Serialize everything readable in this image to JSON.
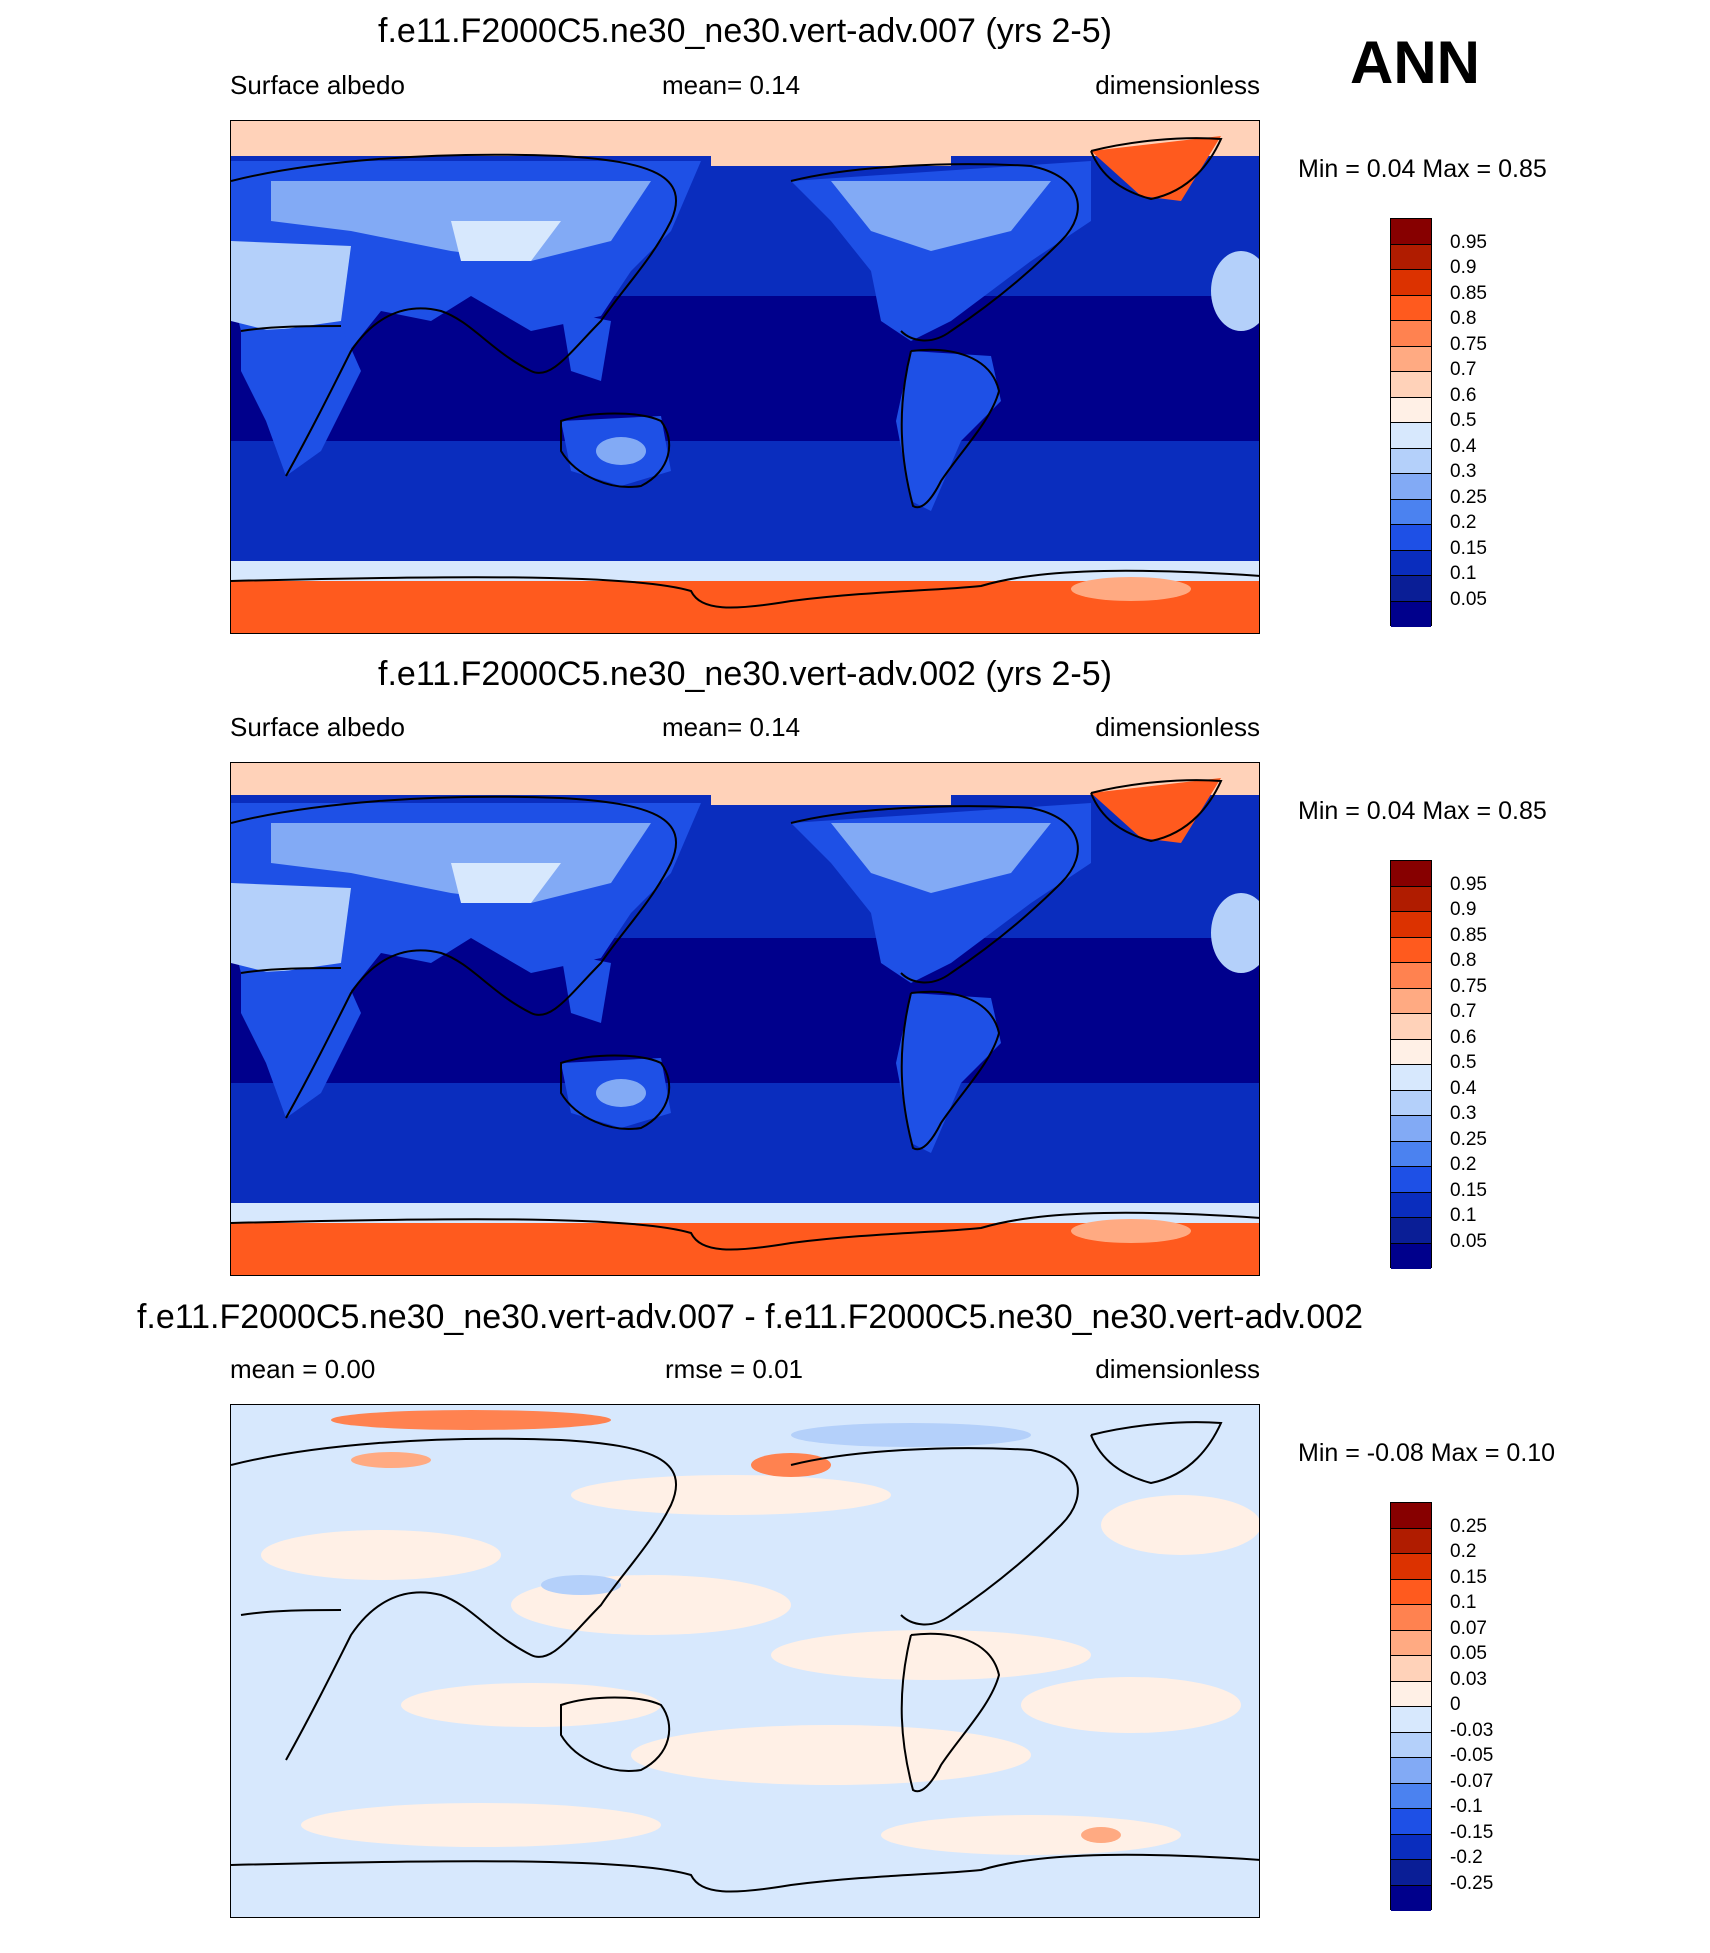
{
  "header": {
    "season": "ANN"
  },
  "panels": [
    {
      "title": "f.e11.F2000C5.ne30_ne30.vert-adv.007 (yrs 2-5)",
      "left_label": "Surface albedo",
      "center_label": "mean=   0.14",
      "right_label": "dimensionless",
      "minmax": "Min =   0.04 Max =   0.85",
      "colorbar_labels": [
        "0.95",
        "0.9",
        "0.85",
        "0.8",
        "0.75",
        "0.7",
        "0.6",
        "0.5",
        "0.4",
        "0.3",
        "0.25",
        "0.2",
        "0.15",
        "0.1",
        "0.05"
      ],
      "colorbar_colors": [
        "#870000",
        "#b01c00",
        "#dc3200",
        "#ff5a1e",
        "#ff8250",
        "#ffaa82",
        "#ffd2b9",
        "#fff0e6",
        "#d7e8fd",
        "#b4d0fa",
        "#82aaf5",
        "#4b82f0",
        "#1e50e6",
        "#0a2dbe",
        "#0a1e96",
        "#00008c"
      ],
      "min": 0.04,
      "max": 0.85,
      "mean": 0.14
    },
    {
      "title": "f.e11.F2000C5.ne30_ne30.vert-adv.002 (yrs 2-5)",
      "left_label": "Surface albedo",
      "center_label": "mean=   0.14",
      "right_label": "dimensionless",
      "minmax": "Min =   0.04 Max =   0.85",
      "colorbar_labels": [
        "0.95",
        "0.9",
        "0.85",
        "0.8",
        "0.75",
        "0.7",
        "0.6",
        "0.5",
        "0.4",
        "0.3",
        "0.25",
        "0.2",
        "0.15",
        "0.1",
        "0.05"
      ],
      "colorbar_colors": [
        "#870000",
        "#b01c00",
        "#dc3200",
        "#ff5a1e",
        "#ff8250",
        "#ffaa82",
        "#ffd2b9",
        "#fff0e6",
        "#d7e8fd",
        "#b4d0fa",
        "#82aaf5",
        "#4b82f0",
        "#1e50e6",
        "#0a2dbe",
        "#0a1e96",
        "#00008c"
      ],
      "min": 0.04,
      "max": 0.85,
      "mean": 0.14
    },
    {
      "title": "f.e11.F2000C5.ne30_ne30.vert-adv.007 - f.e11.F2000C5.ne30_ne30.vert-adv.002",
      "left_label": "mean =   0.00",
      "center_label": "rmse =   0.01",
      "right_label": "dimensionless",
      "minmax": "Min =  -0.08 Max =   0.10",
      "colorbar_labels": [
        "0.25",
        "0.2",
        "0.15",
        "0.1",
        "0.07",
        "0.05",
        "0.03",
        "0",
        "-0.03",
        "-0.05",
        "-0.07",
        "-0.1",
        "-0.15",
        "-0.2",
        "-0.25"
      ],
      "colorbar_colors": [
        "#870000",
        "#b01c00",
        "#dc3200",
        "#ff5a1e",
        "#ff8250",
        "#ffaa82",
        "#ffd2b9",
        "#fff0e6",
        "#d7e8fd",
        "#b4d0fa",
        "#82aaf5",
        "#4b82f0",
        "#1e50e6",
        "#0a2dbe",
        "#0a1e96",
        "#00008c"
      ],
      "min": -0.08,
      "max": 0.1,
      "mean": 0.0,
      "rmse": 0.01
    }
  ]
}
